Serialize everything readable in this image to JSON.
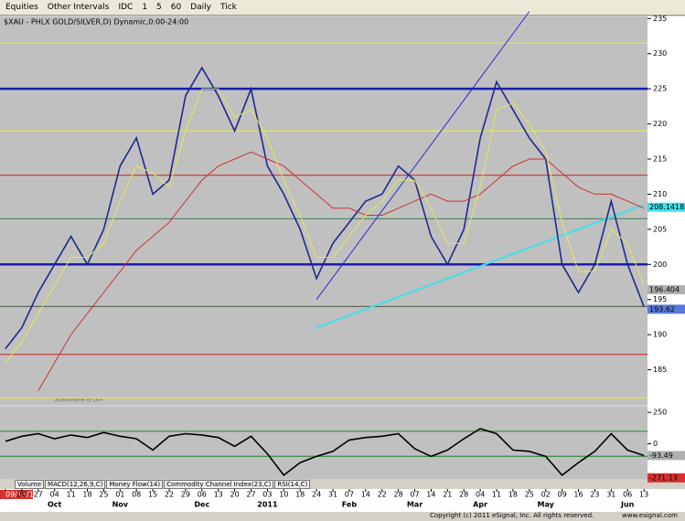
{
  "toolbar": {
    "items": [
      "Equities",
      "Other Intervals",
      "IDC",
      "1",
      "5",
      "60",
      "Daily",
      "Tick"
    ]
  },
  "tabs": [
    "Volume",
    "MACD(12,26,9,C)",
    "Money Flow(14)",
    "Commodity Channel Index(23,C)",
    "RSI(14,C)"
  ],
  "footer": {
    "copyright": "Copyright (c) 2011 eSignal, Inc. All rights reserved.",
    "site": "www.esignal.com"
  },
  "chart_data": [
    {
      "type": "line",
      "title": "$XAU - PHLX GOLD/SILVER,D) Dynamic,0:00-24:00",
      "annotation": "AutoFrame is OFF",
      "categories": [
        "09/13/10",
        "20",
        "27",
        "04",
        "11",
        "18",
        "25",
        "01",
        "08",
        "15",
        "22",
        "29",
        "06",
        "13",
        "20",
        "27",
        "03",
        "10",
        "18",
        "24",
        "31",
        "07",
        "14",
        "22",
        "28",
        "07",
        "14",
        "21",
        "28",
        "04",
        "11",
        "18",
        "25",
        "02",
        "09",
        "16",
        "23",
        "31",
        "06",
        "13"
      ],
      "month_ticks": [
        {
          "value": 3,
          "label": "Oct"
        },
        {
          "value": 7,
          "label": "Nov"
        },
        {
          "value": 12,
          "label": "Dec"
        },
        {
          "value": 16,
          "label": "2011"
        },
        {
          "value": 21,
          "label": "Feb"
        },
        {
          "value": 25,
          "label": "Mar"
        },
        {
          "value": 29,
          "label": "Apr"
        },
        {
          "value": 33,
          "label": "May"
        },
        {
          "value": 38,
          "label": "Jun"
        }
      ],
      "series": [
        {
          "color": "#1c2a8c",
          "values": [
            188,
            191,
            196,
            200,
            204,
            200,
            205,
            214,
            218,
            210,
            212,
            224,
            228,
            224,
            219,
            225,
            214,
            210,
            205,
            198,
            203,
            206,
            209,
            210,
            214,
            212,
            204,
            200,
            205,
            218,
            226,
            222,
            218,
            215,
            200,
            196,
            200,
            209,
            200,
            194
          ]
        },
        {
          "color": "#c83232",
          "values": [
            null,
            null,
            182,
            186,
            190,
            193,
            196,
            199,
            202,
            204,
            206,
            209,
            212,
            214,
            215,
            216,
            215,
            214,
            212,
            210,
            208,
            208,
            207,
            207,
            208,
            209,
            210,
            209,
            209,
            210,
            212,
            214,
            215,
            215,
            213,
            211,
            210,
            210,
            209,
            208
          ]
        },
        {
          "color": "#e6e65a",
          "values": [
            186,
            189,
            193,
            197,
            201,
            201,
            203,
            209,
            214,
            213,
            211,
            219,
            225,
            225,
            221,
            222,
            218,
            212,
            207,
            201,
            201,
            204,
            207,
            209,
            212,
            212,
            208,
            203,
            203,
            211,
            222,
            223,
            220,
            216,
            206,
            199,
            199,
            205,
            203,
            197
          ]
        }
      ],
      "trendlines": [
        {
          "color": "#40e0e8",
          "x": [
            19,
            39
          ],
          "values": [
            191,
            208.5
          ]
        },
        {
          "color": "#2a2ad0",
          "x": [
            19,
            32
          ],
          "values": [
            195,
            236
          ]
        }
      ],
      "levels": [
        {
          "value": 231.5,
          "color": "#e6e65a"
        },
        {
          "value": 225,
          "color": "#1a1ab4"
        },
        {
          "value": 219,
          "color": "#e6e65a"
        },
        {
          "value": 212.7,
          "color": "#c83232"
        },
        {
          "value": 206.5,
          "color": "#5a8a6a"
        },
        {
          "value": 200,
          "color": "#1a1ab4"
        },
        {
          "value": 194,
          "color": "#5a6a5a"
        },
        {
          "value": 187.2,
          "color": "#c83232"
        },
        {
          "value": 181,
          "color": "#e6e65a"
        }
      ],
      "price_labels": [
        {
          "value": 208.1418,
          "color": "#40e0e8"
        },
        {
          "value": 196.404,
          "color": "#b0b0b0"
        },
        {
          "value": 193.62,
          "color": "#5a7ad8"
        }
      ],
      "ylim": [
        180,
        235.3
      ],
      "yticks": [
        185,
        190,
        195,
        200,
        205,
        210,
        215,
        220,
        225,
        230,
        235
      ]
    },
    {
      "type": "line",
      "series": [
        {
          "color": "#000000",
          "values": [
            20,
            60,
            80,
            40,
            70,
            50,
            90,
            60,
            40,
            -50,
            60,
            80,
            70,
            50,
            -20,
            60,
            -80,
            -250,
            -150,
            -100,
            -60,
            30,
            50,
            60,
            80,
            -40,
            -100,
            -50,
            40,
            120,
            80,
            -50,
            -60,
            -100,
            -250,
            -150,
            -60,
            80,
            -50,
            -93.49
          ]
        }
      ],
      "levels": [
        {
          "value": 100,
          "color": "#3a8a3a"
        },
        {
          "value": -100,
          "color": "#3a8a3a"
        }
      ],
      "price_labels": [
        {
          "value": -93.49,
          "color": "#b0b0b0"
        },
        {
          "value": -271.13,
          "color": "#d83030"
        }
      ],
      "ylim": [
        -280,
        295
      ],
      "yticks": [
        250,
        0
      ]
    }
  ]
}
